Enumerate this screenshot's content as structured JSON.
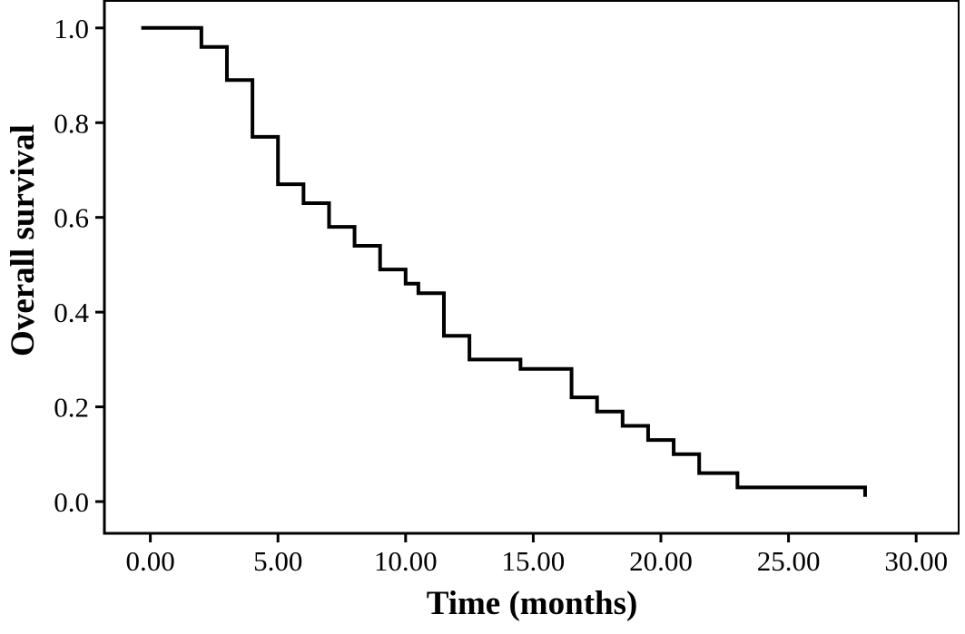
{
  "figure": {
    "background": "#ffffff"
  },
  "chart_data": {
    "type": "line",
    "subtype": "kaplan-meier-step",
    "title": "",
    "xlabel": "Time (months)",
    "ylabel": "Overall survival",
    "xlim": [
      -1.8,
      31.7
    ],
    "ylim": [
      -0.067,
      1.059
    ],
    "grid": false,
    "legend": "none",
    "axis_color": "#000000",
    "xticks": [
      0,
      5,
      10,
      15,
      20,
      25,
      30
    ],
    "xtick_labels": [
      "0.00",
      "5.00",
      "10.00",
      "15.00",
      "20.00",
      "25.00",
      "30.00"
    ],
    "yticks": [
      0,
      0.2,
      0.4,
      0.6,
      0.8,
      1.0
    ],
    "ytick_labels": [
      "0.0",
      "0.2",
      "0.4",
      "0.6",
      "0.8",
      "1.0"
    ],
    "series": [
      {
        "name": "Overall survival",
        "color": "#000000",
        "step": true,
        "points": [
          [
            0,
            1.0
          ],
          [
            2,
            0.96
          ],
          [
            3,
            0.89
          ],
          [
            4,
            0.77
          ],
          [
            5,
            0.67
          ],
          [
            6,
            0.63
          ],
          [
            7,
            0.58
          ],
          [
            8,
            0.54
          ],
          [
            9,
            0.49
          ],
          [
            10,
            0.46
          ],
          [
            10.5,
            0.44
          ],
          [
            11.5,
            0.35
          ],
          [
            12.5,
            0.3
          ],
          [
            14.5,
            0.28
          ],
          [
            16.5,
            0.22
          ],
          [
            17.5,
            0.19
          ],
          [
            18.5,
            0.16
          ],
          [
            19.5,
            0.13
          ],
          [
            20.5,
            0.1
          ],
          [
            21.5,
            0.06
          ],
          [
            23,
            0.03
          ],
          [
            28,
            0.01
          ]
        ]
      }
    ]
  }
}
